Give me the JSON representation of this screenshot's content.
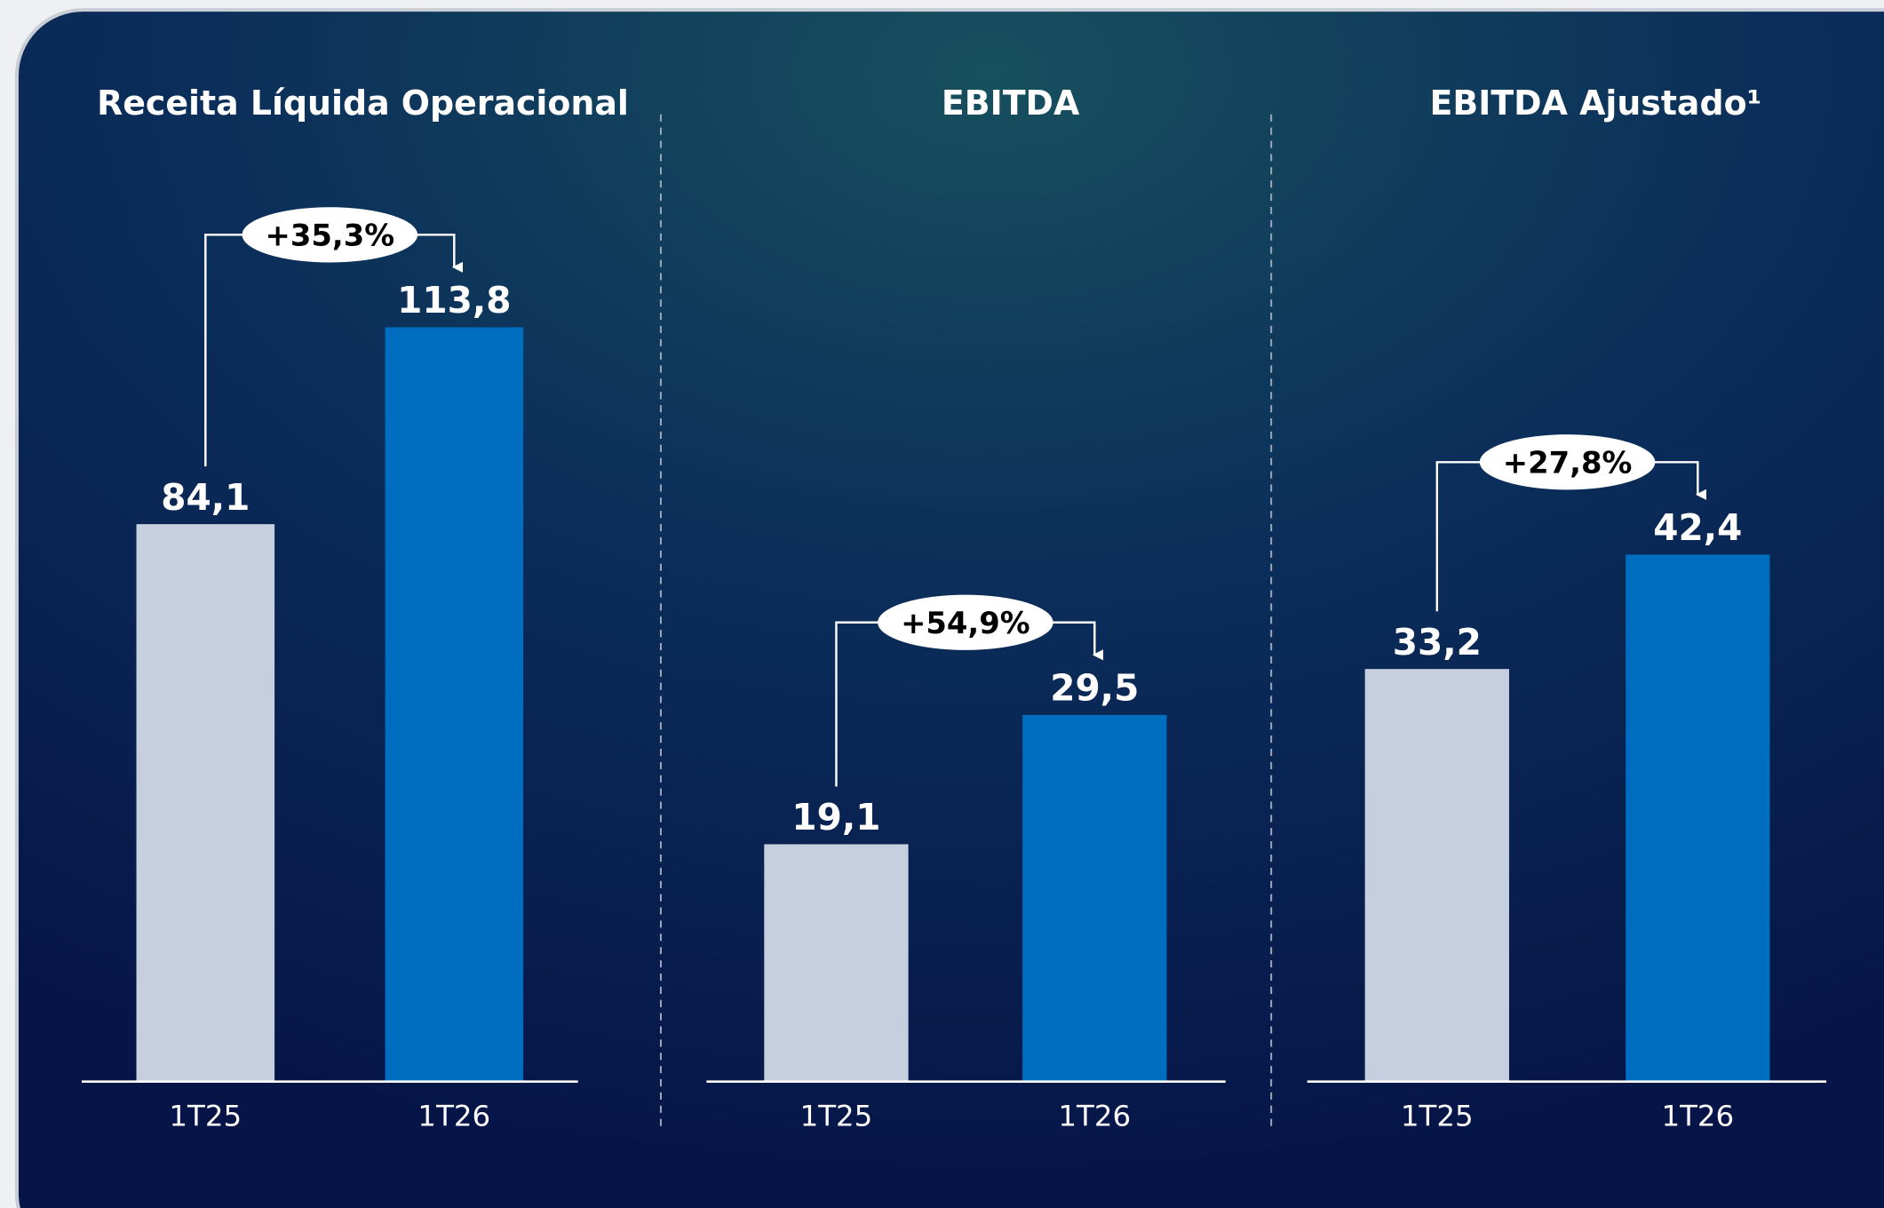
{
  "chart_data": [
    {
      "type": "bar",
      "title": "Receita Líquida Operacional",
      "categories": [
        "1T25",
        "1T26"
      ],
      "values": [
        84.1,
        113.8
      ],
      "value_labels": [
        "84,1",
        "113,8"
      ],
      "colors": [
        "#c5cfe0",
        "#006ec0"
      ],
      "annotation": "+35,3%",
      "ylim": [
        0,
        120
      ]
    },
    {
      "type": "bar",
      "title": "EBITDA",
      "categories": [
        "1T25",
        "1T26"
      ],
      "values": [
        19.1,
        29.5
      ],
      "value_labels": [
        "19,1",
        "29,5"
      ],
      "colors": [
        "#c5cfe0",
        "#006ec0"
      ],
      "annotation": "+54,9%",
      "ylim": [
        0,
        64
      ]
    },
    {
      "type": "bar",
      "title": "EBITDA Ajustado¹",
      "categories": [
        "1T25",
        "1T26"
      ],
      "values": [
        33.2,
        42.4
      ],
      "value_labels": [
        "33,2",
        "42,4"
      ],
      "colors": [
        "#c5cfe0",
        "#006ec0"
      ],
      "annotation": "+27,8%",
      "ylim": [
        0,
        64
      ]
    }
  ]
}
